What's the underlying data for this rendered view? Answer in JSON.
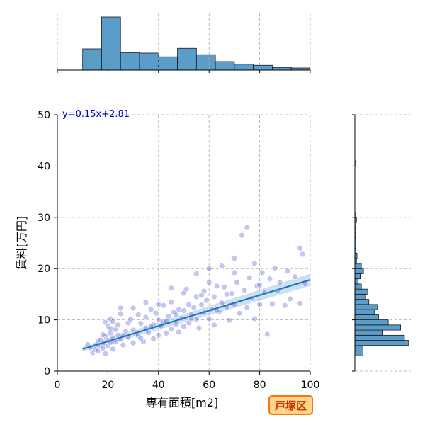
{
  "chart_data": {
    "type": "scatter",
    "xlabel": "専有面積[m2]",
    "ylabel": "賃料[万円]",
    "xlim": [
      0,
      100
    ],
    "ylim": [
      0,
      50
    ],
    "xticks": [
      0,
      20,
      40,
      60,
      80,
      100
    ],
    "yticks": [
      0,
      10,
      20,
      30,
      40,
      50
    ],
    "grid": true,
    "annotation": "y=0.15x+2.81",
    "badge": "戸塚区",
    "regression": {
      "slope": 0.15,
      "intercept": 2.81,
      "x_range": [
        10,
        100
      ]
    },
    "points": [
      [
        12,
        5.2
      ],
      [
        13,
        4.6
      ],
      [
        14,
        3.6
      ],
      [
        15,
        5.0
      ],
      [
        15,
        4.2
      ],
      [
        16,
        5.8
      ],
      [
        16,
        3.9
      ],
      [
        17,
        4.8
      ],
      [
        17,
        6.1
      ],
      [
        18,
        5.3
      ],
      [
        18,
        4.5
      ],
      [
        19,
        9.5
      ],
      [
        19,
        6.8
      ],
      [
        19,
        3.4
      ],
      [
        20,
        8.8
      ],
      [
        20,
        6.0
      ],
      [
        20,
        4.9
      ],
      [
        21,
        10.2
      ],
      [
        21,
        7.4
      ],
      [
        21,
        5.6
      ],
      [
        22,
        6.5
      ],
      [
        22,
        4.3
      ],
      [
        23,
        8.1
      ],
      [
        23,
        5.7
      ],
      [
        24,
        7.0
      ],
      [
        24,
        9.0
      ],
      [
        25,
        12.3
      ],
      [
        25,
        6.2
      ],
      [
        26,
        5.1
      ],
      [
        27,
        7.8
      ],
      [
        28,
        9.4
      ],
      [
        28,
        6.6
      ],
      [
        29,
        10.1
      ],
      [
        30,
        8.0
      ],
      [
        30,
        5.5
      ],
      [
        31,
        7.2
      ],
      [
        32,
        11.0
      ],
      [
        32,
        6.9
      ],
      [
        33,
        9.3
      ],
      [
        34,
        5.8
      ],
      [
        35,
        8.4
      ],
      [
        35,
        10.5
      ],
      [
        36,
        7.5
      ],
      [
        37,
        12.0
      ],
      [
        38,
        9.0
      ],
      [
        38,
        6.3
      ],
      [
        39,
        11.3
      ],
      [
        40,
        10.0
      ],
      [
        40,
        7.0
      ],
      [
        41,
        8.8
      ],
      [
        42,
        12.8
      ],
      [
        42,
        9.6
      ],
      [
        43,
        7.4
      ],
      [
        44,
        10.7
      ],
      [
        45,
        13.5
      ],
      [
        45,
        8.2
      ],
      [
        46,
        11.5
      ],
      [
        47,
        9.1
      ],
      [
        48,
        12.0
      ],
      [
        48,
        7.6
      ],
      [
        49,
        10.3
      ],
      [
        50,
        11.8
      ],
      [
        50,
        8.7
      ],
      [
        51,
        16.0
      ],
      [
        52,
        13.0
      ],
      [
        52,
        9.4
      ],
      [
        53,
        11.0
      ],
      [
        54,
        12.4
      ],
      [
        55,
        10.1
      ],
      [
        55,
        14.5
      ],
      [
        56,
        8.4
      ],
      [
        57,
        12.9
      ],
      [
        58,
        11.4
      ],
      [
        58,
        15.6
      ],
      [
        59,
        13.8
      ],
      [
        60,
        10.2
      ],
      [
        60,
        20.0
      ],
      [
        61,
        12.1
      ],
      [
        62,
        14.5
      ],
      [
        62,
        9.0
      ],
      [
        63,
        16.6
      ],
      [
        64,
        11.6
      ],
      [
        65,
        13.3
      ],
      [
        66,
        16.4
      ],
      [
        67,
        12.5
      ],
      [
        68,
        9.9
      ],
      [
        69,
        15.1
      ],
      [
        70,
        22.0
      ],
      [
        70,
        13.0
      ],
      [
        71,
        17.3
      ],
      [
        72,
        11.3
      ],
      [
        73,
        26.5
      ],
      [
        74,
        15.8
      ],
      [
        75,
        28.0
      ],
      [
        75,
        12.4
      ],
      [
        76,
        18.2
      ],
      [
        77,
        14.2
      ],
      [
        78,
        21.0
      ],
      [
        78,
        10.2
      ],
      [
        79,
        16.6
      ],
      [
        80,
        13.0
      ],
      [
        81,
        19.2
      ],
      [
        82,
        15.3
      ],
      [
        83,
        7.2
      ],
      [
        84,
        18.0
      ],
      [
        85,
        13.1
      ],
      [
        86,
        20.1
      ],
      [
        87,
        15.6
      ],
      [
        88,
        17.3
      ],
      [
        90,
        12.8
      ],
      [
        91,
        19.5
      ],
      [
        92,
        14.1
      ],
      [
        94,
        18.4
      ],
      [
        96,
        24.0
      ],
      [
        96,
        13.2
      ],
      [
        97,
        22.8
      ],
      [
        98,
        17.0
      ],
      [
        65,
        20.5
      ],
      [
        55,
        19.0
      ],
      [
        45,
        16.2
      ],
      [
        35,
        13.4
      ],
      [
        25,
        11.2
      ],
      [
        22,
        9.6
      ],
      [
        30,
        12.3
      ],
      [
        40,
        13.0
      ],
      [
        50,
        15.2
      ],
      [
        60,
        17.3
      ],
      [
        70,
        19.2
      ],
      [
        80,
        16.8
      ],
      [
        18,
        7.1
      ],
      [
        21,
        8.3
      ],
      [
        26,
        7.0
      ],
      [
        33,
        6.4
      ],
      [
        37,
        8.7
      ],
      [
        43,
        9.8
      ],
      [
        47,
        11.0
      ],
      [
        53,
        10.2
      ],
      [
        57,
        14.8
      ],
      [
        63,
        11.8
      ],
      [
        67,
        15.0
      ]
    ],
    "top_hist": {
      "bin_edges": [
        10,
        17.5,
        25,
        32.5,
        40,
        47.5,
        55,
        62.5,
        70,
        77.5,
        85,
        92.5,
        100
      ],
      "heights": [
        0.4,
        1.0,
        0.33,
        0.32,
        0.25,
        0.41,
        0.29,
        0.16,
        0.11,
        0.09,
        0.05,
        0.04
      ]
    },
    "right_hist": {
      "bin_edges": [
        3,
        5,
        6,
        7,
        8,
        9,
        10,
        11,
        12,
        13,
        14,
        15,
        16,
        17,
        18,
        19,
        20,
        21,
        22,
        23,
        24,
        26,
        27,
        28,
        29,
        30,
        31,
        40,
        41
      ],
      "widths": [
        0.15,
        1.0,
        0.92,
        0.52,
        0.85,
        0.62,
        0.44,
        0.36,
        0.42,
        0.26,
        0.2,
        0.24,
        0.12,
        0.06,
        0.1,
        0.16,
        0.12,
        0.03,
        0.04,
        0.02,
        0.02,
        0.02,
        0.02,
        0.02,
        0.03,
        0.02,
        0.0,
        0.02
      ]
    }
  },
  "colors": {
    "hist_fill": "#5b9dc9",
    "hist_edge": "#1a1a1a",
    "point_fill": "#5a5ad8",
    "point_edge": "#ffffff",
    "reg_line": "#1f77b4",
    "reg_band": "#a8cbe6",
    "grid": "#aaaaaa",
    "annotation": "#0000cc",
    "badge_bg": "#ffd58a",
    "badge_border": "#f07a10",
    "badge_text": "#cc3300"
  }
}
